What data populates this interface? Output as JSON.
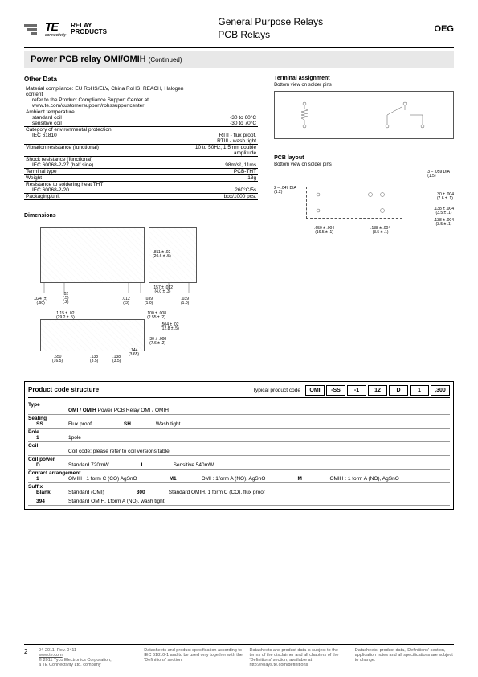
{
  "header": {
    "logo_text": "TE",
    "logo_sub1": "RELAY",
    "logo_sub2": "PRODUCTS",
    "logo_conn": "connectivity",
    "title1": "General Purpose Relays",
    "title2": "PCB Relays",
    "brand": "OEG"
  },
  "titlebar": {
    "title": "Power PCB relay OMI/OMIH",
    "cont": "(Continued)"
  },
  "other_data_h": "Other Data",
  "other_data": [
    {
      "l": "Material compliance: EU RoHS/ELV, China RoHS, REACH, Halogen content",
      "r": "",
      "d": 0,
      "i": 0
    },
    {
      "l": "refer to the Product Compliance Support Center at",
      "r": "",
      "d": 0,
      "i": 1
    },
    {
      "l": "www.te.com/customersupport/rohssupportcenter",
      "r": "",
      "d": 1,
      "i": 1
    },
    {
      "l": "Ambient temperature",
      "r": "",
      "d": 0,
      "i": 0
    },
    {
      "l": "standard coil",
      "r": "-30 to 60°C",
      "d": 0,
      "i": 1
    },
    {
      "l": "sensitive coil",
      "r": "-30 to 70°C",
      "d": 1,
      "i": 1
    },
    {
      "l": "Category of environmental protection",
      "r": "",
      "d": 0,
      "i": 0
    },
    {
      "l": "IEC 61810",
      "r": "RTII - flux proof,",
      "d": 0,
      "i": 1
    },
    {
      "l": "",
      "r": "RTIII - wash tight",
      "d": 1,
      "i": 1
    },
    {
      "l": "Vibration resistance (functional)",
      "r": "10 to 50Hz, 1.5mm double amplitude",
      "d": 1,
      "i": 0
    },
    {
      "l": "Shock resistance (functional)",
      "r": "",
      "d": 0,
      "i": 0
    },
    {
      "l": "IEC 60068-2-27  (half sine)",
      "r": "98m/s², 11ms",
      "d": 1,
      "i": 1
    },
    {
      "l": "Terminal type",
      "r": "PCB-THT",
      "d": 1,
      "i": 0
    },
    {
      "l": "Weight",
      "r": "13g",
      "d": 1,
      "i": 0
    },
    {
      "l": "Resistance to soldering heat THT",
      "r": "",
      "d": 0,
      "i": 0
    },
    {
      "l": "IEC 60068-2-20",
      "r": "260°C/5s",
      "d": 1,
      "i": 1
    },
    {
      "l": "Packaging/unit",
      "r": "box/1000 pcs.",
      "d": 1,
      "i": 0
    }
  ],
  "terminal_h": "Terminal assignment",
  "terminal_note": "Bottom view on solder pins",
  "pcb_h": "PCB layout",
  "pcb_note": "Bottom view on solder pins",
  "pcb_dims": {
    "d1": "3 – .059 DIA\n(1.5)",
    "d2": "2 – .047 DIA\n(1.2)",
    "w1": ".30 ± .004\n(7.6 ± .1)",
    "w2": ".138 ± .004\n(3.5 ± .1)",
    "w3": ".138 ± .004\n(3.5 ± .1)",
    "l1": ".650 ± .004\n(16.5 ± .1)",
    "l2": ".138 ± .004\n(3.5 ± .1)"
  },
  "dims_h": "Dimensions",
  "dims": {
    "h": ".811 ± .02\n(20.6 ± .5)",
    "lead_h": ".157 ± .012\n(4.0 ± .3)",
    "p1": ".024 (±)\n(.60)",
    "p2": ".02\n(.5)\n(.3)",
    "p3": ".012\n(.3)",
    "p4": ".039\n(1.0)",
    "p5": ".039\n(1.0)",
    "bw": "1.15 ± .02\n(29.2 ± .5)",
    "bw2": ".100 ± .008\n(2.55 ± .2)",
    "bl": ".504 ± .02\n(12.8 ± .5)",
    "bh": ".30 ± .008\n(7.6 ± .2)",
    "bl1": ".650\n(16.5)",
    "bl2": ".138\n(3.5)",
    "bl3": ".138\n(3.5)",
    "bl4": ".144\n(3.65)"
  },
  "pcs_h": "Product code structure",
  "pcs_typ": "Typical product code",
  "pcs_code": [
    "OMI",
    "-SS",
    "-1",
    "12",
    "D",
    "1",
    ",300"
  ],
  "pcs_rows": [
    {
      "h": "Type",
      "items": [
        {
          "c": "",
          "t": "OMI / OMIH Power PCB Relay OMI / OMIH",
          "b": 1
        }
      ]
    },
    {
      "h": "Sealing",
      "items": [
        {
          "c": "SS",
          "t": "Flux proof"
        },
        {
          "c": "SH",
          "t": "Wash tight"
        }
      ]
    },
    {
      "h": "Pole",
      "items": [
        {
          "c": "1",
          "t": "1pole"
        }
      ]
    },
    {
      "h": "Coil",
      "items": [
        {
          "c": "",
          "t": "Coil code: please refer to coil versions table"
        }
      ]
    },
    {
      "h": "Coil power",
      "items": [
        {
          "c": "D",
          "t": "Standard 720mW"
        },
        {
          "c": "L",
          "t": "Sensitive 540mW"
        }
      ]
    },
    {
      "h": "Contact arrangement",
      "items": [
        {
          "c": "1",
          "t": "OMIH : 1 form C (CO) AgSnO"
        },
        {
          "c": "M1",
          "t": "OMI : 1form A (NO), AgSnO"
        },
        {
          "c": "M",
          "t": "OMIH : 1 form A (NO), AgSnO"
        }
      ]
    },
    {
      "h": "Suffix",
      "items": [
        {
          "c": "Blank",
          "t": "Standard (OMI)"
        },
        {
          "c": "300",
          "t": "Standard OMIH, 1 form C (CO), flux proof"
        },
        {
          "c": "",
          "t": ""
        },
        {
          "c": "394",
          "t": "Standard OMIH, 1form A (NO), wash tight"
        }
      ]
    }
  ],
  "footer": {
    "page": "2",
    "c1a": "04-2011, Rev. 0411",
    "c1b": "www.te.com",
    "c1c": "© 2011 Tyco Electronics Corporation,",
    "c1d": "a TE Connectivity Ltd. company",
    "c2": "Datasheets and product specification according to IEC 61810-1 and to be used only together with the 'Definitions' section.",
    "c3": "Datasheets and product data is subject to the terms of the disclaimer and all chapters of the 'Definitions' section, available at http://relays.te.com/definitions",
    "c4": "Datasheets, product data, 'Definitions' section, application notes and all specifications are subject to change."
  }
}
